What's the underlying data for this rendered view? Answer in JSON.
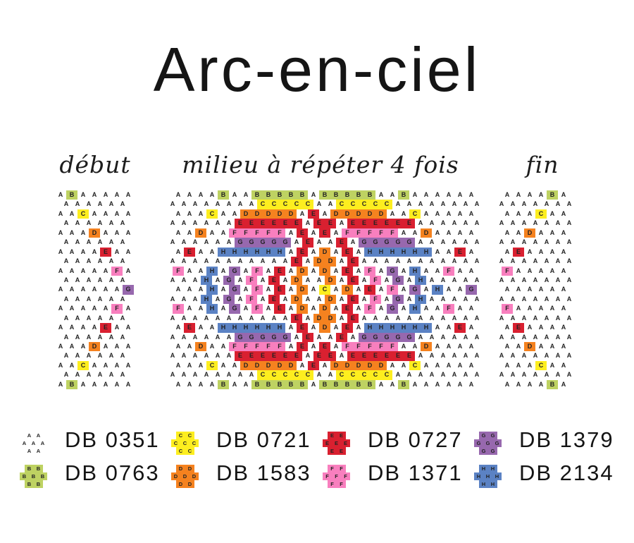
{
  "title": "Arc-en-ciel",
  "sections": {
    "debut": {
      "label": "début",
      "rows": [
        "ABAAAAA",
        "AAAAAA",
        "AACAAAA",
        "AAAAAA",
        "AAADAAA",
        "AAAAAA",
        "AAAAEAA",
        "AAAAAA",
        "AAAAAFA",
        "AAAAAA",
        "AAAAAAG",
        "AAAAAA",
        "AAAAAFA",
        "AAAAAA",
        "AAAAEAA",
        "AAAAAA",
        "AAADAAA",
        "AAAAAA",
        "AACAAAA",
        "AAAAAA",
        "ABAAAAA"
      ]
    },
    "milieu": {
      "label": "milieu à répéter 4 fois",
      "rows": [
        "AAAABAABBBBBABBBBBAABAAAAAA",
        "AAAAAAAACCCCCAACCCCCAAAAAAAA",
        "AAACAADDDDDAEADDDDDAACAAAAA",
        "AAAAAAEEEEEEAEEAEEEEEEAAAAAA",
        "AADAAFFFFFAEAEAFFFFFAADAAAA",
        "AAAAAAGGGGGAEAAEAGGGGGAAAAAA",
        "AEAAHHHHHHAEADAEAHHHHHHAAEA",
        "AAAAAAAAAAAEADDAEAAAAAAAAAAA",
        "FAAHAGAFAEADADAEAFAGAHAAFAA",
        "AAAHAGAFAEADAADAEAFAGAHAAAAA",
        "AAAHAGAFAEADACADAEAFAGAHAAG",
        "AAAHAGAFAEADAADAEAFAGAHAAAAA",
        "FAAHAGAFAEADADAEAFAGAHAAFAA",
        "AAAAAAAAAAAEADDAEAAAAAAAAAAA",
        "AEAAHHHHHHAEADAEAHHHHHHAAEA",
        "AAAAAAGGGGGAEAAEAGGGGGAAAAAA",
        "AADAAFFFFFAEAEAFFFFFAADAAAA",
        "AAAAAAEEEEEEAEEAEEEEEEAAAAAA",
        "AAACAADDDDDAEADDDDDAACAAAAA",
        "AAAAAAAACCCCCAACCCCCAAAAAAAA",
        "AAAABAABBBBBABBBBBAABAAAAAA"
      ]
    },
    "fin": {
      "label": "fin",
      "rows": [
        "AAAABA",
        "AAAAAAA",
        "AAACAA",
        "AAAAAAA",
        "AADAAA",
        "AAAAAAA",
        "AEAAAA",
        "AAAAAAA",
        "FAAAAA",
        "AAAAAAA",
        "AAAAAA",
        "AAAAAAA",
        "FAAAAA",
        "AAAAAAA",
        "AEAAAA",
        "AAAAAAA",
        "AADAAA",
        "AAAAAAA",
        "AAACAA",
        "AAAAAAA",
        "AAAABA"
      ]
    }
  },
  "bead_colors": {
    "A": "#ffffff",
    "B": "#bed262",
    "C": "#fdee1f",
    "D": "#f5821f",
    "E": "#d92030",
    "F": "#f87fbe",
    "G": "#9768ae",
    "H": "#5b82c4"
  },
  "legend": [
    {
      "letter": "A",
      "code": "DB 0351"
    },
    {
      "letter": "C",
      "code": "DB 0721"
    },
    {
      "letter": "E",
      "code": "DB 0727"
    },
    {
      "letter": "G",
      "code": "DB 1379"
    },
    {
      "letter": "B",
      "code": "DB 0763"
    },
    {
      "letter": "D",
      "code": "DB 1583"
    },
    {
      "letter": "F",
      "code": "DB 1371"
    },
    {
      "letter": "H",
      "code": "DB 2134"
    }
  ]
}
